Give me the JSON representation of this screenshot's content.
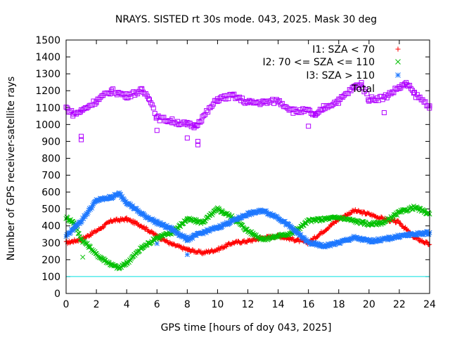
{
  "chart_data": {
    "type": "scatter",
    "title": "NRAYS. SISTED rt 30s mode. 043, 2025. Mask 30 deg",
    "xlabel": "GPS time [hours of doy 043, 2025]",
    "ylabel": "Number of GPS receiver-satellite rays",
    "xlim": [
      0,
      24
    ],
    "ylim": [
      0,
      1500
    ],
    "xticks": [
      "0",
      "2",
      "4",
      "6",
      "8",
      "10",
      "12",
      "14",
      "16",
      "18",
      "20",
      "22",
      "24"
    ],
    "yticks": [
      "0",
      "100",
      "200",
      "300",
      "400",
      "500",
      "600",
      "700",
      "800",
      "900",
      "1000",
      "1100",
      "1200",
      "1300",
      "1400",
      "1500"
    ],
    "hidden_legend_text": "Total",
    "reference_line": {
      "y": 100,
      "color": "#00e0e0"
    },
    "series": [
      {
        "name": "I1: SZA < 70",
        "color": "#ff0000",
        "marker": "+",
        "points": [
          [
            0,
            300
          ],
          [
            1,
            320
          ],
          [
            2,
            370
          ],
          [
            3,
            430
          ],
          [
            4,
            440
          ],
          [
            5,
            400
          ],
          [
            6,
            340
          ],
          [
            7,
            290
          ],
          [
            8,
            260
          ],
          [
            9,
            240
          ],
          [
            10,
            260
          ],
          [
            11,
            300
          ],
          [
            12,
            310
          ],
          [
            13,
            330
          ],
          [
            14,
            340
          ],
          [
            15,
            320
          ],
          [
            16,
            300
          ],
          [
            17,
            370
          ],
          [
            18,
            440
          ],
          [
            19,
            490
          ],
          [
            20,
            470
          ],
          [
            21,
            440
          ],
          [
            22,
            420
          ],
          [
            23,
            330
          ],
          [
            24,
            290
          ]
        ]
      },
      {
        "name": "I2: 70 <= SZA <= 110",
        "color": "#00c000",
        "marker": "x",
        "points": [
          [
            0,
            450
          ],
          [
            0.5,
            420
          ],
          [
            1,
            320
          ],
          [
            1.5,
            280
          ],
          [
            2,
            230
          ],
          [
            2.5,
            200
          ],
          [
            3,
            170
          ],
          [
            3.5,
            150
          ],
          [
            4,
            180
          ],
          [
            5,
            270
          ],
          [
            6,
            330
          ],
          [
            7,
            360
          ],
          [
            8,
            440
          ],
          [
            9,
            420
          ],
          [
            10,
            500
          ],
          [
            11,
            450
          ],
          [
            12,
            370
          ],
          [
            13,
            320
          ],
          [
            14,
            340
          ],
          [
            15,
            360
          ],
          [
            16,
            430
          ],
          [
            17,
            440
          ],
          [
            18,
            450
          ],
          [
            19,
            430
          ],
          [
            20,
            410
          ],
          [
            21,
            420
          ],
          [
            22,
            480
          ],
          [
            23,
            510
          ],
          [
            24,
            470
          ]
        ]
      },
      {
        "name": "I3: SZA > 110",
        "color": "#1e78ff",
        "marker": "*",
        "points": [
          [
            0,
            340
          ],
          [
            1,
            430
          ],
          [
            2,
            550
          ],
          [
            3,
            570
          ],
          [
            3.5,
            590
          ],
          [
            4,
            540
          ],
          [
            5,
            470
          ],
          [
            6,
            420
          ],
          [
            7,
            380
          ],
          [
            8,
            320
          ],
          [
            9,
            360
          ],
          [
            10,
            390
          ],
          [
            11,
            430
          ],
          [
            12,
            470
          ],
          [
            13,
            490
          ],
          [
            14,
            450
          ],
          [
            15,
            380
          ],
          [
            16,
            300
          ],
          [
            17,
            280
          ],
          [
            18,
            300
          ],
          [
            19,
            330
          ],
          [
            20,
            310
          ],
          [
            21,
            320
          ],
          [
            22,
            340
          ],
          [
            23,
            350
          ],
          [
            24,
            360
          ]
        ]
      },
      {
        "name": "Total",
        "color": "#b000ff",
        "marker": "square",
        "points": [
          [
            0,
            1100
          ],
          [
            0.5,
            1060
          ],
          [
            1,
            1080
          ],
          [
            2,
            1140
          ],
          [
            3,
            1200
          ],
          [
            4,
            1170
          ],
          [
            5,
            1200
          ],
          [
            5.5,
            1160
          ],
          [
            6,
            1040
          ],
          [
            7,
            1020
          ],
          [
            8,
            1000
          ],
          [
            8.5,
            990
          ],
          [
            9,
            1040
          ],
          [
            10,
            1150
          ],
          [
            11,
            1170
          ],
          [
            12,
            1130
          ],
          [
            13,
            1130
          ],
          [
            14,
            1140
          ],
          [
            15,
            1080
          ],
          [
            16,
            1080
          ],
          [
            16.5,
            1050
          ],
          [
            17,
            1100
          ],
          [
            18,
            1140
          ],
          [
            19,
            1220
          ],
          [
            19.5,
            1240
          ],
          [
            20,
            1150
          ],
          [
            21,
            1160
          ],
          [
            22,
            1220
          ],
          [
            22.5,
            1240
          ],
          [
            23,
            1180
          ],
          [
            24,
            1110
          ]
        ]
      }
    ],
    "outliers": [
      {
        "series": "I2: 70 <= SZA <= 110",
        "x": 1.1,
        "y": 215
      },
      {
        "series": "I3: SZA > 110",
        "x": 6.0,
        "y": 295
      },
      {
        "series": "I3: SZA > 110",
        "x": 8.0,
        "y": 230
      },
      {
        "series": "Total",
        "x": 1.0,
        "y": 910
      },
      {
        "series": "Total",
        "x": 1.0,
        "y": 930
      },
      {
        "series": "Total",
        "x": 6.0,
        "y": 965
      },
      {
        "series": "Total",
        "x": 8.0,
        "y": 920
      },
      {
        "series": "Total",
        "x": 8.7,
        "y": 880
      },
      {
        "series": "Total",
        "x": 8.7,
        "y": 900
      },
      {
        "series": "Total",
        "x": 16.0,
        "y": 990
      },
      {
        "series": "Total",
        "x": 21.0,
        "y": 1070
      }
    ]
  }
}
